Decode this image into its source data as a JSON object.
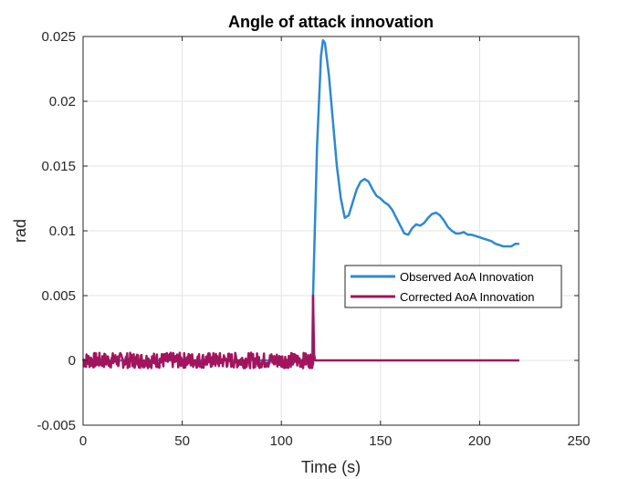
{
  "chart_data": {
    "type": "line",
    "title": "Angle of attack innovation",
    "xlabel": "Time (s)",
    "ylabel": "rad",
    "xlim": [
      0,
      250
    ],
    "ylim": [
      -0.005,
      0.025
    ],
    "xticks": [
      0,
      50,
      100,
      150,
      200,
      250
    ],
    "xtick_labels": [
      "0",
      "50",
      "100",
      "150",
      "200",
      "250"
    ],
    "yticks": [
      -0.005,
      0,
      0.005,
      0.01,
      0.015,
      0.02,
      0.025
    ],
    "ytick_labels": [
      "-0.005",
      "0",
      "0.005",
      "0.01",
      "0.015",
      "0.02",
      "0.025"
    ],
    "grid": true,
    "legend_position": "center-right",
    "series": [
      {
        "name": "Observed AoA Innovation",
        "color": "#2e89d1",
        "x": [
          0,
          110,
          115.5,
          116,
          118,
          120,
          121,
          122,
          124,
          126,
          128,
          130,
          132,
          134,
          136,
          138,
          140,
          142,
          144,
          146,
          148,
          150,
          152,
          154,
          156,
          158,
          160,
          162,
          164,
          166,
          168,
          170,
          172,
          174,
          176,
          178,
          180,
          182,
          184,
          186,
          188,
          190,
          192,
          194,
          196,
          198,
          200,
          202,
          204,
          206,
          208,
          210,
          212,
          214,
          216,
          218,
          220
        ],
        "y": [
          0,
          0,
          0,
          0.005,
          0.0165,
          0.0235,
          0.0247,
          0.0245,
          0.022,
          0.0185,
          0.015,
          0.0125,
          0.011,
          0.0112,
          0.0122,
          0.0132,
          0.0138,
          0.014,
          0.0138,
          0.0132,
          0.0127,
          0.0125,
          0.0122,
          0.012,
          0.0116,
          0.011,
          0.0104,
          0.0098,
          0.0097,
          0.0102,
          0.0105,
          0.0104,
          0.0106,
          0.011,
          0.0113,
          0.0114,
          0.0112,
          0.0108,
          0.0103,
          0.01,
          0.0098,
          0.0098,
          0.0099,
          0.0097,
          0.0097,
          0.0096,
          0.0095,
          0.0094,
          0.0093,
          0.0092,
          0.009,
          0.0089,
          0.0088,
          0.0088,
          0.0088,
          0.009,
          0.009
        ]
      },
      {
        "name": "Corrected AoA Innovation",
        "color": "#a2145d",
        "noise_amplitude": 0.0006,
        "noise_until": 116,
        "x": [
          0,
          115,
          116,
          116.5,
          117,
          220
        ],
        "y": [
          0,
          0,
          0.005,
          0.0005,
          0,
          0
        ]
      }
    ]
  }
}
